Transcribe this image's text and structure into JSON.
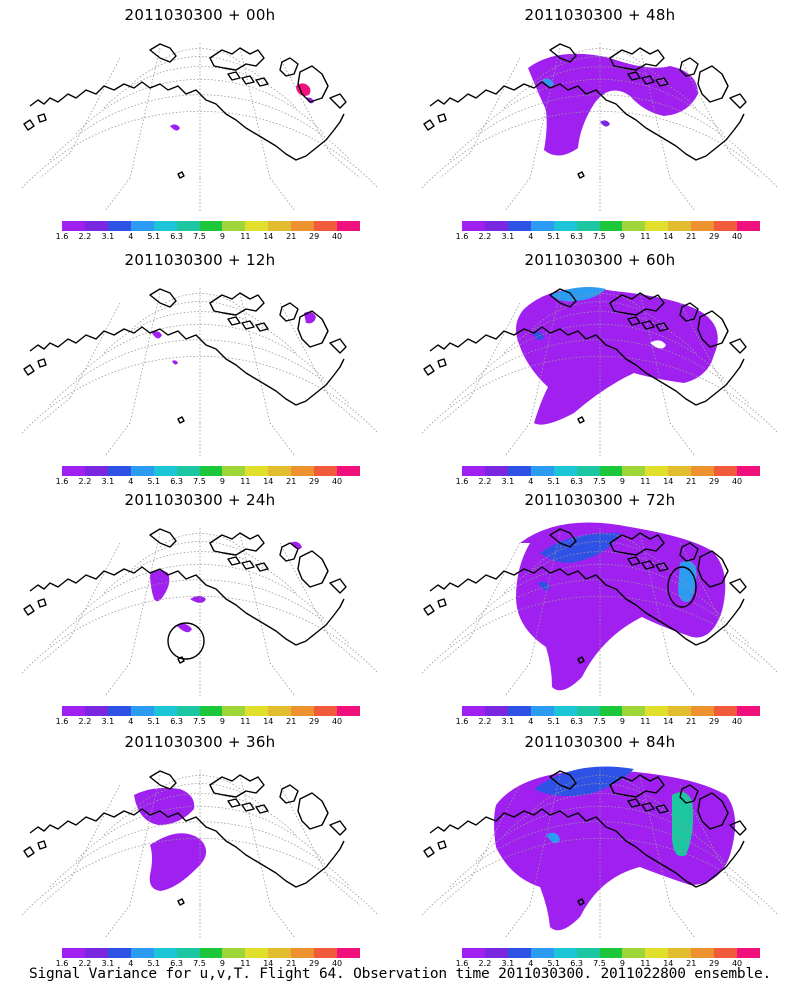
{
  "panels": [
    {
      "title": "2011030300 + 00h",
      "shading": "p00"
    },
    {
      "title": "2011030300 + 48h",
      "shading": "p48"
    },
    {
      "title": "2011030300 + 12h",
      "shading": "p12"
    },
    {
      "title": "2011030300 + 60h",
      "shading": "p60"
    },
    {
      "title": "2011030300 + 24h",
      "shading": "p24"
    },
    {
      "title": "2011030300 + 72h",
      "shading": "p72"
    },
    {
      "title": "2011030300 + 36h",
      "shading": "p36"
    },
    {
      "title": "2011030300 + 84h",
      "shading": "p84"
    }
  ],
  "colorbar": {
    "labels": [
      "1.6",
      "2.2",
      "3.1",
      "4",
      "5.1",
      "6.3",
      "7.5",
      "9",
      "11",
      "14",
      "21",
      "29",
      "40"
    ],
    "colors": [
      "#a020f0",
      "#7a28e0",
      "#2f52e6",
      "#2c9cf2",
      "#1cc6d8",
      "#1cc6a0",
      "#1cc83a",
      "#9ed63a",
      "#e0e02c",
      "#e4bc30",
      "#ee9230",
      "#f25a3c",
      "#f0107e"
    ]
  },
  "footer": "Signal Variance for u,v,T. Flight 64. Observation time 2011030300. 2011022800 ensemble."
}
